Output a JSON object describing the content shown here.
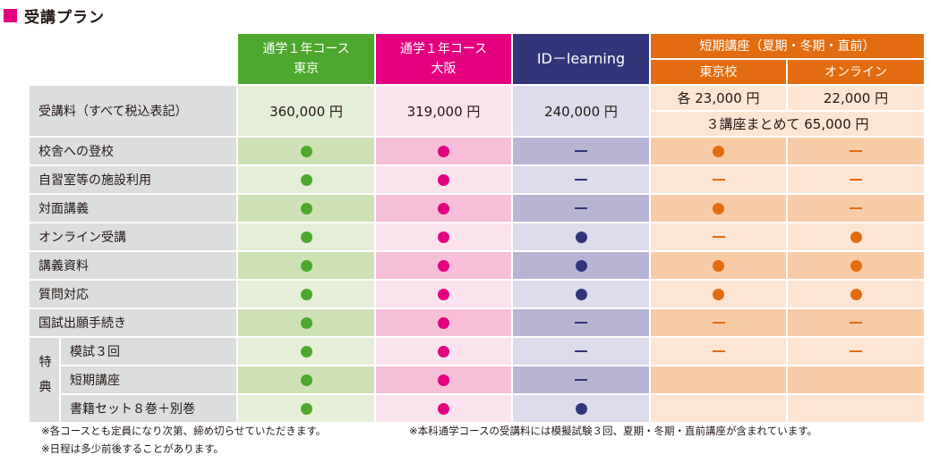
{
  "title": "受講プラン",
  "colors": {
    "accent": "#e4007f",
    "green": "#4ea72f",
    "pink": "#e4007f",
    "navy": "#33357a",
    "orange": "#e36c10"
  },
  "columns": {
    "tokyo": [
      "通学１年コース",
      "東京"
    ],
    "osaka": [
      "通学１年コース",
      "大阪"
    ],
    "id": "ID－learning",
    "short": "短期講座（夏期・冬期・直前）",
    "short_tokyo": "東京校",
    "short_online": "オンライン"
  },
  "fee_row": {
    "label": "受講料（すべて税込表記）",
    "tokyo": "360,000 円",
    "osaka": "319,000 円",
    "id": "240,000 円",
    "short_tokyo": "各 23,000 円",
    "short_online": "22,000 円",
    "short_bundle": "３講座まとめて 65,000 円"
  },
  "tokuten_label": "特典",
  "rows": [
    {
      "label": "校舎への登校",
      "marks": [
        "dot",
        "dot",
        "dash",
        "dot",
        "dash"
      ]
    },
    {
      "label": "自習室等の施設利用",
      "marks": [
        "dot",
        "dot",
        "dash",
        "dash",
        "dash"
      ]
    },
    {
      "label": "対面講義",
      "marks": [
        "dot",
        "dot",
        "dash",
        "dot",
        "dash"
      ]
    },
    {
      "label": "オンライン受講",
      "marks": [
        "dot",
        "dot",
        "dot",
        "dash",
        "dot"
      ]
    },
    {
      "label": "講義資料",
      "marks": [
        "dot",
        "dot",
        "dot",
        "dot",
        "dot"
      ]
    },
    {
      "label": "質問対応",
      "marks": [
        "dot",
        "dot",
        "dot",
        "dot",
        "dot"
      ]
    },
    {
      "label": "国試出願手続き",
      "marks": [
        "dot",
        "dot",
        "dash",
        "dash",
        "dash"
      ]
    },
    {
      "label": "模試３回",
      "marks": [
        "dot",
        "dot",
        "dash",
        "dash",
        "dash"
      ]
    },
    {
      "label": "短期講座",
      "marks": [
        "dot",
        "dot",
        "dash",
        "",
        ""
      ]
    },
    {
      "label": "書籍セット８巻＋別巻",
      "marks": [
        "dot",
        "dot",
        "dot",
        "",
        ""
      ]
    }
  ],
  "notes": {
    "n1": "※各コースとも定員になり次第、締め切らせていただきます。",
    "n2": "※本科通学コースの受講料には模擬試験３回、夏期・冬期・直前講座が含まれています。",
    "n3": "※日程は多少前後することがあります。"
  }
}
